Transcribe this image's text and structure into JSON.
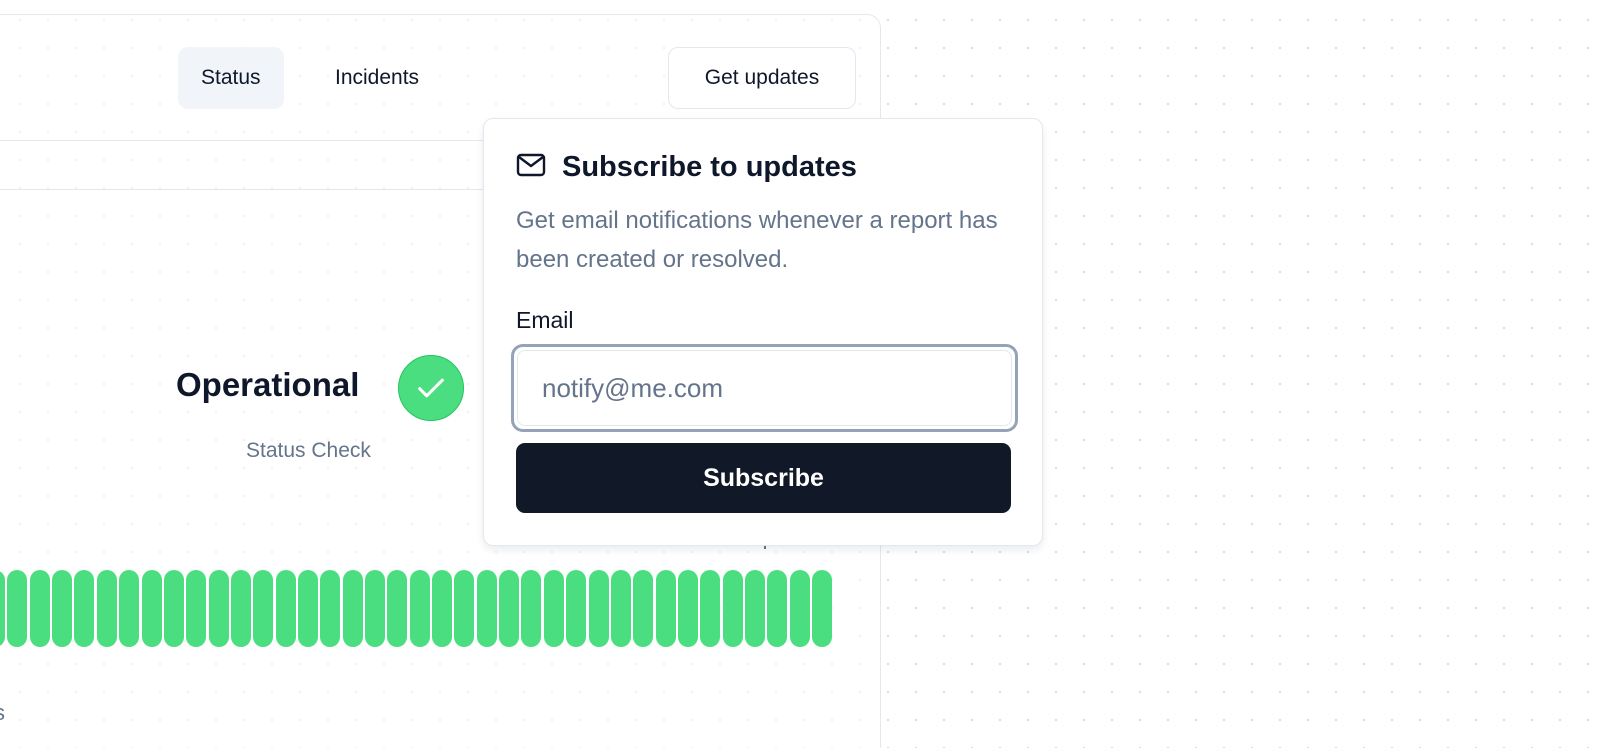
{
  "nav": {
    "tabs": [
      {
        "label": "Status",
        "active": true
      },
      {
        "label": "Incidents",
        "active": false
      }
    ],
    "get_updates_label": "Get updates"
  },
  "status": {
    "title": "Operational",
    "subtitle": "Status Check",
    "icon": "check-icon",
    "color": "#4ade80",
    "uptime_bar_count": 38,
    "uptime_bar_state": "operational",
    "cut_text": "s"
  },
  "subscribe": {
    "icon": "mail-icon",
    "title": "Subscribe to updates",
    "description": "Get email notifications whenever a report has been created or resolved.",
    "email_label": "Email",
    "email_value": "",
    "email_placeholder": "notify@me.com",
    "button_label": "Subscribe",
    "button_color": "#111827"
  }
}
